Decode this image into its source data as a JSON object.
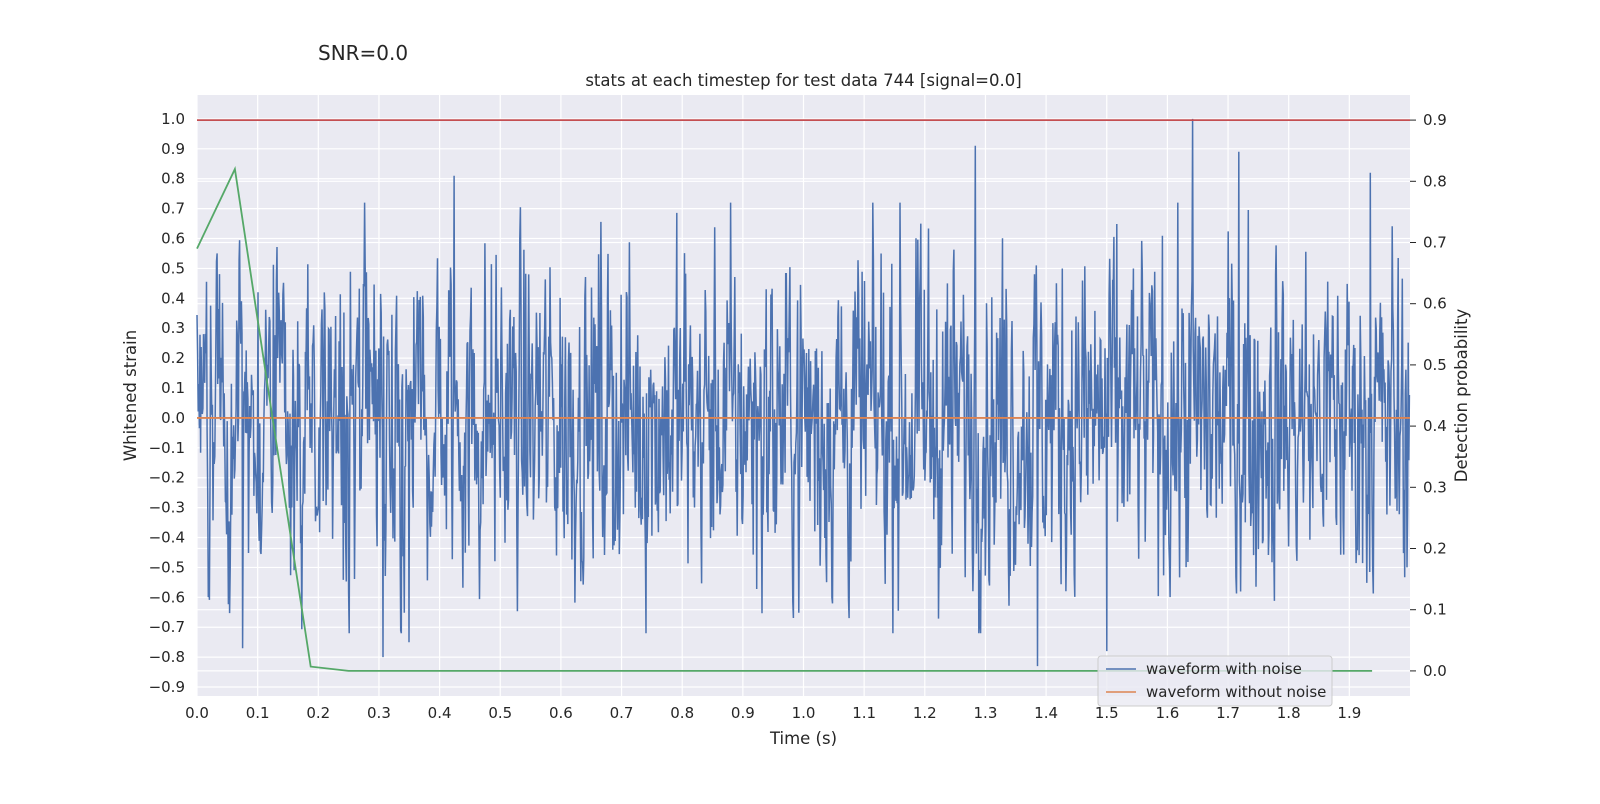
{
  "figure": {
    "suptitle": "SNR=0.0"
  },
  "chart_data": {
    "type": "line",
    "title": "stats at each timestep for test data 744 [signal=0.0]",
    "xlabel": "Time (s)",
    "ylabel": "Whitened strain",
    "y2label": "Detection probability",
    "xlim": [
      0.0,
      2.0
    ],
    "ylim": [
      -0.93,
      1.08
    ],
    "y2lim": [
      -0.041,
      0.941
    ],
    "xticks": [
      0.0,
      0.1,
      0.2,
      0.3,
      0.4,
      0.5,
      0.6,
      0.7,
      0.8,
      0.9,
      1.0,
      1.1,
      1.2,
      1.3,
      1.4,
      1.5,
      1.6,
      1.7,
      1.8,
      1.9
    ],
    "xtick_labels": [
      "0.0",
      "0.1",
      "0.2",
      "0.3",
      "0.4",
      "0.5",
      "0.6",
      "0.7",
      "0.8",
      "0.9",
      "1.0",
      "1.1",
      "1.2",
      "1.3",
      "1.4",
      "1.5",
      "1.6",
      "1.7",
      "1.8",
      "1.9"
    ],
    "yticks": [
      1.0,
      0.9,
      0.8,
      0.7,
      0.6,
      0.5,
      0.4,
      0.3,
      0.2,
      0.1,
      0.0,
      -0.1,
      -0.2,
      -0.3,
      -0.4,
      -0.5,
      -0.6,
      -0.7,
      -0.8,
      -0.9
    ],
    "ytick_labels": [
      "1.0",
      "0.9",
      "0.8",
      "0.7",
      "0.6",
      "0.5",
      "0.4",
      "0.3",
      "0.2",
      "0.1",
      "0.0",
      "−0.1",
      "−0.2",
      "−0.3",
      "−0.4",
      "−0.5",
      "−0.6",
      "−0.7",
      "−0.8",
      "−0.9"
    ],
    "y2ticks": [
      0.9,
      0.8,
      0.7,
      0.6,
      0.5,
      0.4,
      0.3,
      0.2,
      0.1,
      0.0
    ],
    "y2tick_labels": [
      "0.9",
      "0.8",
      "0.7",
      "0.6",
      "0.5",
      "0.4",
      "0.3",
      "0.2",
      "0.1",
      "0.0"
    ],
    "grid": true,
    "legend_position": "lower-right",
    "series": [
      {
        "name": "waveform with noise",
        "axis": "left",
        "color": "#4c72b0",
        "note_style": "dense noise",
        "x_range": [
          0.0,
          2.0
        ],
        "approx_range": [
          -0.85,
          1.0
        ],
        "peaks": [
          {
            "x": 1.642,
            "y": 1.0
          },
          {
            "x": 1.283,
            "y": 0.91
          },
          {
            "x": 1.718,
            "y": 0.89
          },
          {
            "x": 1.935,
            "y": 0.82
          },
          {
            "x": 0.424,
            "y": 0.81
          },
          {
            "x": 1.386,
            "y": -0.83
          },
          {
            "x": 0.307,
            "y": -0.8
          },
          {
            "x": 1.5,
            "y": -0.78
          },
          {
            "x": 0.075,
            "y": -0.77
          },
          {
            "x": 0.35,
            "y": -0.75
          }
        ]
      },
      {
        "name": "waveform without noise",
        "axis": "left",
        "color": "#dd8452",
        "x": [
          0.0,
          2.0
        ],
        "y": [
          0.0,
          0.0
        ]
      },
      {
        "name": "",
        "axis": "right",
        "color": "#55a868",
        "x": [
          0.0,
          0.0625,
          0.125,
          0.1875,
          0.25,
          0.3125,
          0.375,
          0.4375,
          0.5,
          0.5625,
          0.625,
          0.6875,
          0.75,
          0.8125,
          0.875,
          0.9375,
          1.0,
          1.0625,
          1.125,
          1.1875,
          1.25,
          1.3125,
          1.375,
          1.4375,
          1.5,
          1.5625,
          1.625,
          1.6875,
          1.75,
          1.8125,
          1.875,
          1.9375
        ],
        "y": [
          0.69,
          0.82,
          0.41,
          0.007,
          0.0,
          0.0,
          0.0,
          0.0,
          0.0,
          0.0,
          0.0,
          0.0,
          0.0,
          0.0,
          0.0,
          0.0,
          0.0,
          0.0,
          0.0,
          0.0,
          0.0,
          0.0,
          0.0,
          0.0,
          0.0,
          0.0,
          0.0,
          0.0,
          0.0,
          0.0,
          0.0,
          0.0
        ]
      },
      {
        "name": "",
        "axis": "right",
        "color": "#c44e52",
        "x": [
          0.0,
          2.0
        ],
        "y": [
          0.9,
          0.9
        ]
      }
    ]
  }
}
